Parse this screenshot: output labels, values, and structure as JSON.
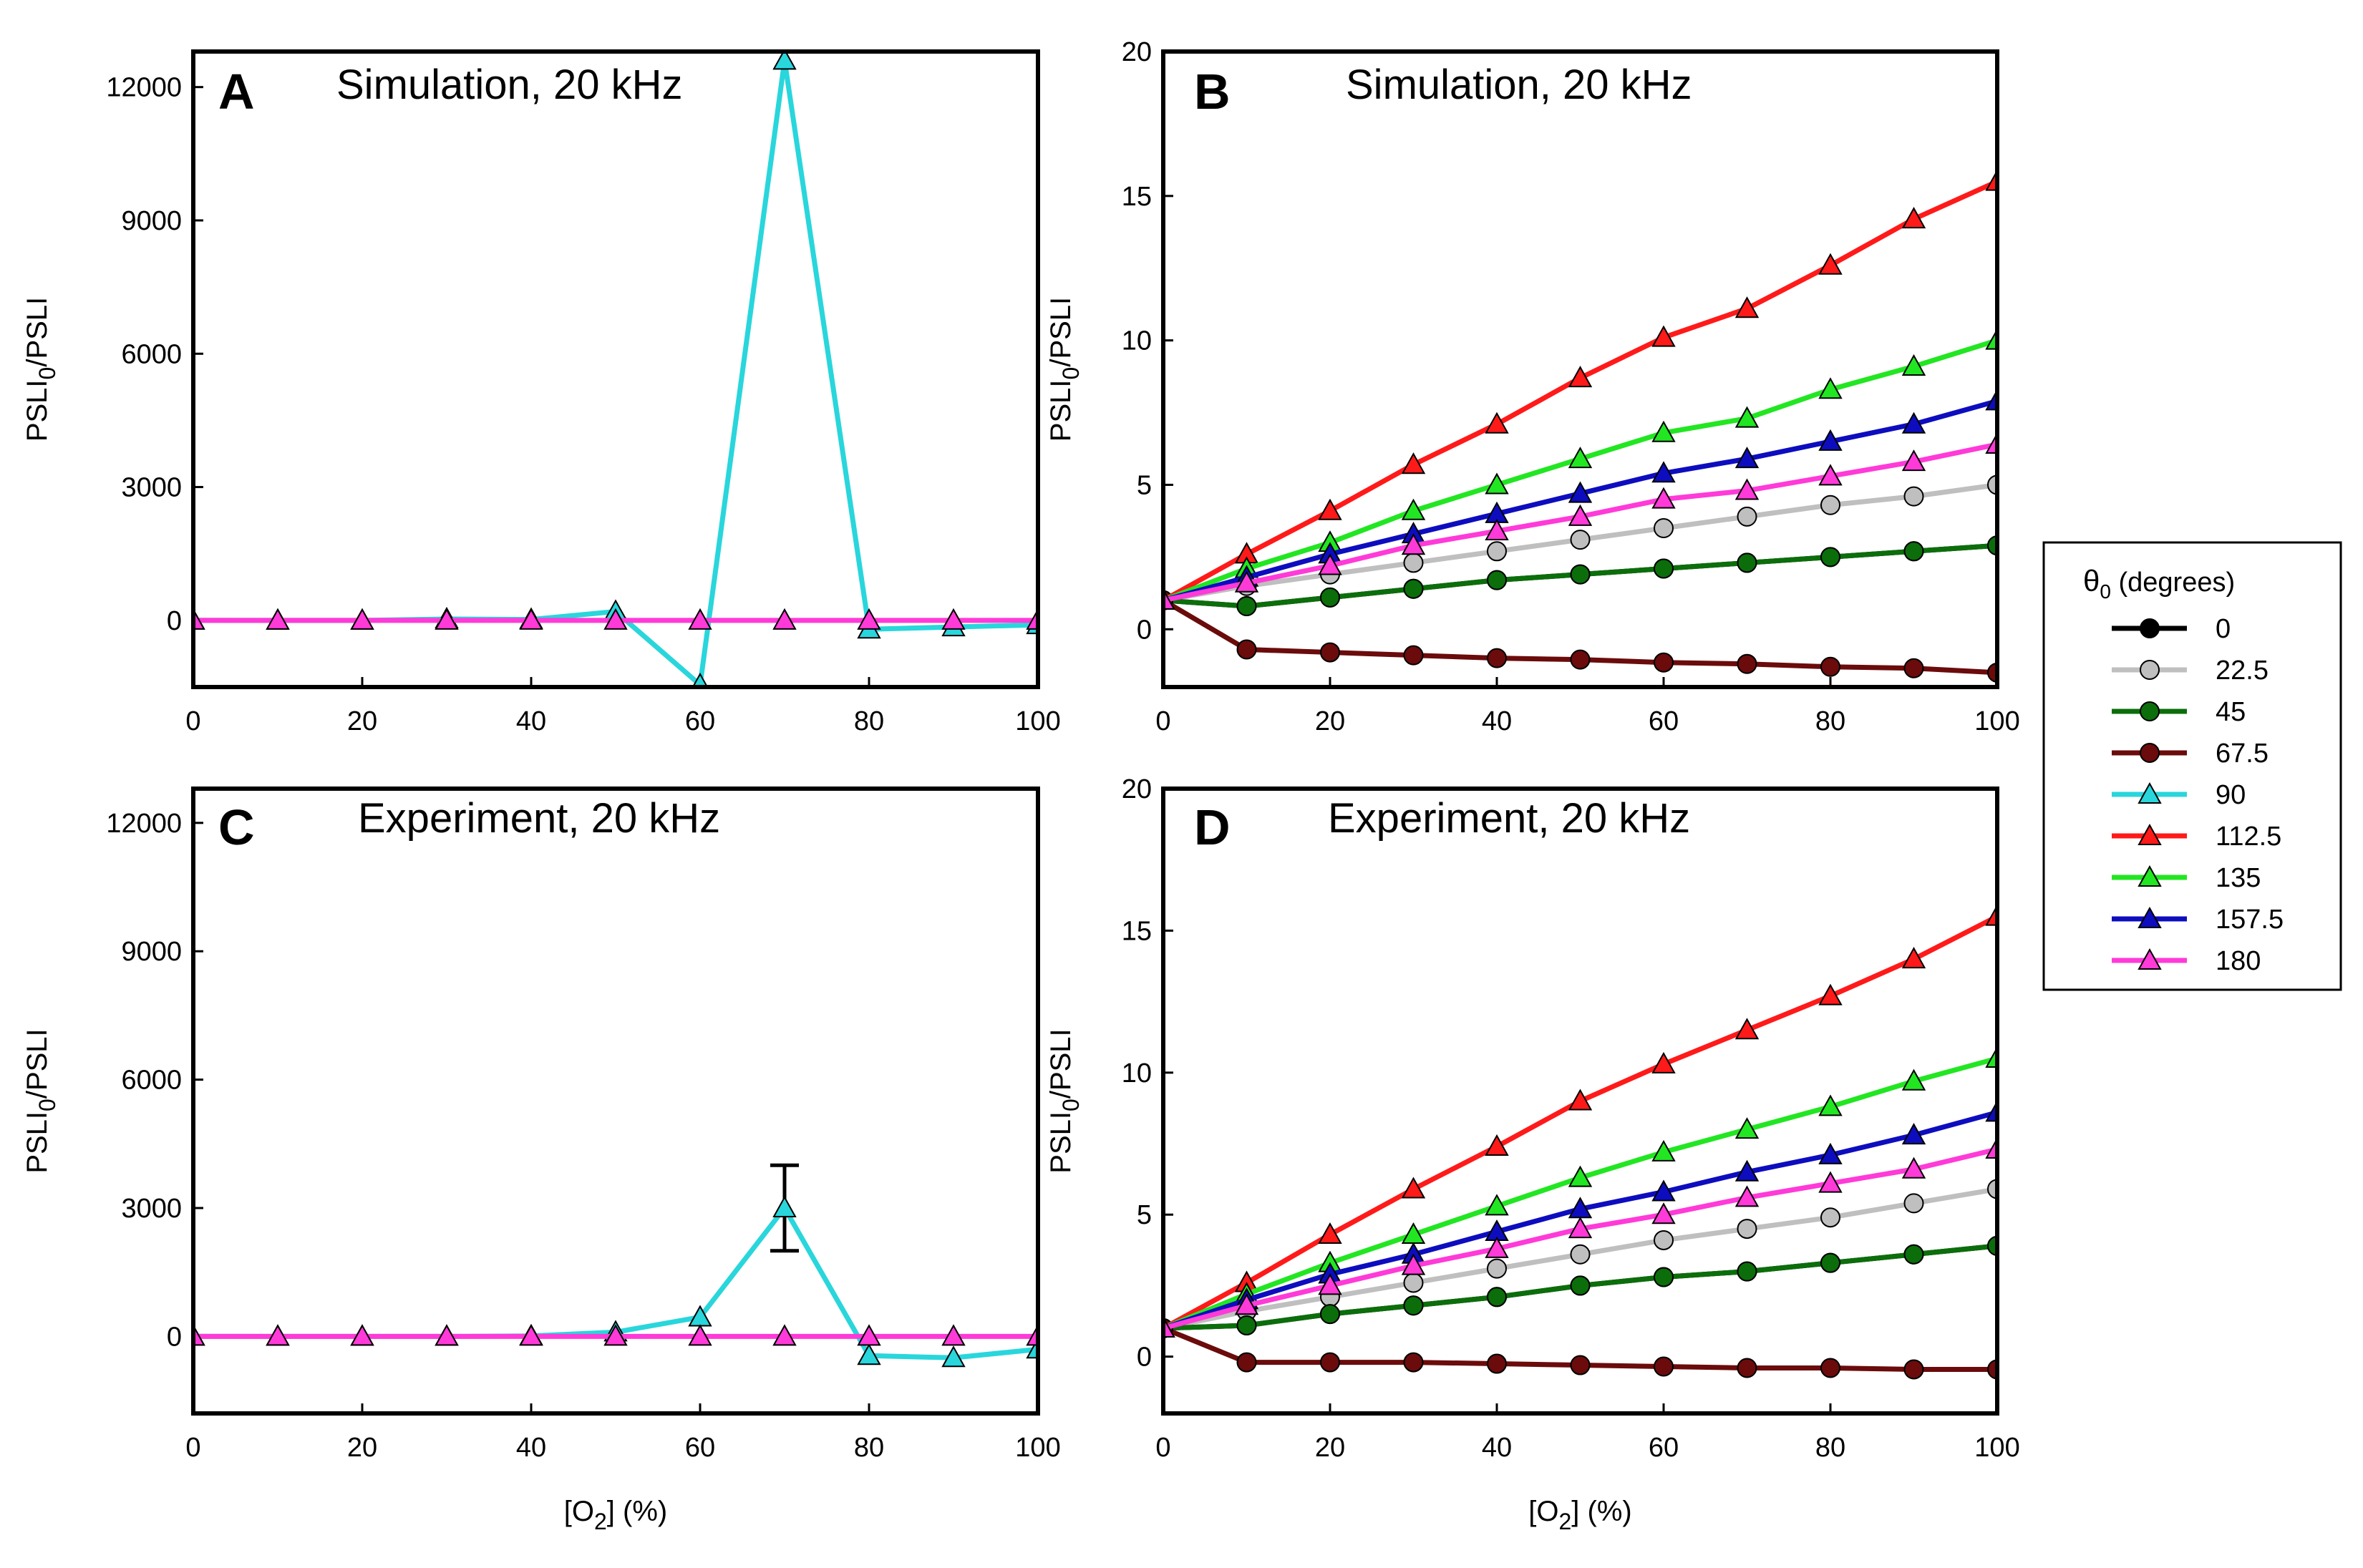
{
  "figure": {
    "x_axis_title": {
      "main": "[O",
      "sub": "2",
      "tail": "] (%)"
    },
    "y_axis_title": {
      "main": "PSLI",
      "sub": "0",
      "tail": "/PSLI"
    },
    "legend": {
      "title_symbol": "θ",
      "title_sub": "0",
      "title_tail": " (degrees)"
    }
  },
  "chart_data": [
    {
      "id": "A",
      "type": "line",
      "letter": "A",
      "title": "Simulation, 20 kHz",
      "xlabel": "[O2] (%)",
      "ylabel": "PSLI0/PSLI",
      "xlim": [
        0,
        100
      ],
      "ylim": [
        -1500,
        12800
      ],
      "xticks": [
        0,
        20,
        40,
        60,
        80,
        100
      ],
      "xtick_labels": [
        "0",
        "20",
        "40",
        "60",
        "80",
        "100"
      ],
      "yticks": [
        0,
        3000,
        6000,
        9000,
        12000
      ],
      "ytick_labels": [
        "0",
        "3000",
        "6000",
        "9000",
        "12000"
      ],
      "x": [
        0,
        10,
        20,
        30,
        40,
        50,
        60,
        70,
        80,
        90,
        100
      ],
      "series": [
        {
          "name": "90",
          "values": [
            1,
            0,
            0,
            30,
            20,
            200,
            -1450,
            12600,
            -200,
            -150,
            -100
          ],
          "errors": []
        },
        {
          "name": "180",
          "values": [
            0,
            0,
            0,
            0,
            0,
            0,
            0,
            0,
            0,
            0,
            0
          ],
          "errors": []
        }
      ]
    },
    {
      "id": "B",
      "type": "line",
      "letter": "B",
      "title": "Simulation, 20 kHz",
      "xlabel": "[O2] (%)",
      "ylabel": "PSLI0/PSLI",
      "xlim": [
        0,
        100
      ],
      "ylim": [
        -2,
        20
      ],
      "xticks": [
        0,
        20,
        40,
        60,
        80,
        100
      ],
      "xtick_labels": [
        "0",
        "20",
        "40",
        "60",
        "80",
        "100"
      ],
      "yticks": [
        0,
        5,
        10,
        15,
        20
      ],
      "ytick_labels": [
        "0",
        "5",
        "10",
        "15",
        "20"
      ],
      "x": [
        0,
        10,
        20,
        30,
        40,
        50,
        60,
        70,
        80,
        90,
        100
      ],
      "series": [
        {
          "name": "0",
          "values": [
            1,
            0.8,
            1.1,
            1.4,
            1.7,
            1.9,
            2.1,
            2.3,
            2.5,
            2.7,
            2.9
          ]
        },
        {
          "name": "22.5",
          "values": [
            1,
            1.5,
            1.9,
            2.3,
            2.7,
            3.1,
            3.5,
            3.9,
            4.3,
            4.6,
            5.0
          ]
        },
        {
          "name": "45",
          "values": [
            1,
            0.8,
            1.1,
            1.4,
            1.7,
            1.9,
            2.1,
            2.3,
            2.5,
            2.7,
            2.9
          ]
        },
        {
          "name": "67.5",
          "values": [
            1,
            -0.7,
            -0.8,
            -0.9,
            -1.0,
            -1.05,
            -1.15,
            -1.2,
            -1.3,
            -1.35,
            -1.5
          ]
        },
        {
          "name": "112.5",
          "values": [
            1,
            2.6,
            4.1,
            5.7,
            7.1,
            8.7,
            10.1,
            11.1,
            12.6,
            14.2,
            15.5
          ]
        },
        {
          "name": "135",
          "values": [
            1,
            2.1,
            3.0,
            4.1,
            5.0,
            5.9,
            6.8,
            7.3,
            8.3,
            9.1,
            10.0
          ]
        },
        {
          "name": "157.5",
          "values": [
            1,
            1.8,
            2.6,
            3.3,
            4.0,
            4.7,
            5.4,
            5.9,
            6.5,
            7.1,
            7.9
          ]
        },
        {
          "name": "180",
          "values": [
            1,
            1.6,
            2.2,
            2.9,
            3.4,
            3.9,
            4.5,
            4.8,
            5.3,
            5.8,
            6.4
          ]
        }
      ]
    },
    {
      "id": "C",
      "type": "line",
      "letter": "C",
      "title": "Experiment, 20 kHz",
      "xlabel": "[O2] (%)",
      "ylabel": "PSLI0/PSLI",
      "xlim": [
        0,
        100
      ],
      "ylim": [
        -1800,
        12800
      ],
      "xticks": [
        0,
        20,
        40,
        60,
        80,
        100
      ],
      "xtick_labels": [
        "0",
        "20",
        "40",
        "60",
        "80",
        "100"
      ],
      "yticks": [
        0,
        3000,
        6000,
        9000,
        12000
      ],
      "ytick_labels": [
        "0",
        "3000",
        "6000",
        "9000",
        "12000"
      ],
      "x": [
        0,
        10,
        20,
        30,
        40,
        50,
        60,
        70,
        80,
        90,
        100
      ],
      "series": [
        {
          "name": "90",
          "values": [
            1,
            0,
            0,
            0,
            10,
            100,
            450,
            3000,
            -450,
            -500,
            -300
          ],
          "errors": [
            0,
            0,
            0,
            0,
            0,
            0,
            0,
            1000,
            0,
            0,
            0
          ]
        },
        {
          "name": "180",
          "values": [
            0,
            0,
            0,
            0,
            0,
            0,
            0,
            0,
            0,
            0,
            0
          ],
          "errors": []
        }
      ]
    },
    {
      "id": "D",
      "type": "line",
      "letter": "D",
      "title": "Experiment, 20 kHz",
      "xlabel": "[O2] (%)",
      "ylabel": "PSLI0/PSLI",
      "xlim": [
        0,
        100
      ],
      "ylim": [
        -2,
        20
      ],
      "xticks": [
        0,
        20,
        40,
        60,
        80,
        100
      ],
      "xtick_labels": [
        "0",
        "20",
        "40",
        "60",
        "80",
        "100"
      ],
      "yticks": [
        0,
        5,
        10,
        15,
        20
      ],
      "ytick_labels": [
        "0",
        "5",
        "10",
        "15",
        "20"
      ],
      "x": [
        0,
        10,
        20,
        30,
        40,
        50,
        60,
        70,
        80,
        90,
        100
      ],
      "series": [
        {
          "name": "0",
          "values": [
            1,
            1.1,
            1.5,
            1.8,
            2.1,
            2.5,
            2.8,
            3.0,
            3.3,
            3.6,
            3.9
          ]
        },
        {
          "name": "22.5",
          "values": [
            1,
            1.6,
            2.1,
            2.6,
            3.1,
            3.6,
            4.1,
            4.5,
            4.9,
            5.4,
            5.9
          ]
        },
        {
          "name": "45",
          "values": [
            1,
            1.1,
            1.5,
            1.8,
            2.1,
            2.5,
            2.8,
            3.0,
            3.3,
            3.6,
            3.9
          ]
        },
        {
          "name": "67.5",
          "values": [
            1,
            -0.2,
            -0.2,
            -0.2,
            -0.25,
            -0.3,
            -0.35,
            -0.4,
            -0.4,
            -0.45,
            -0.45
          ]
        },
        {
          "name": "112.5",
          "values": [
            1,
            2.6,
            4.3,
            5.9,
            7.4,
            9.0,
            10.3,
            11.5,
            12.7,
            14.0,
            15.5
          ]
        },
        {
          "name": "135",
          "values": [
            1,
            2.2,
            3.3,
            4.3,
            5.3,
            6.3,
            7.2,
            8.0,
            8.8,
            9.7,
            10.5
          ]
        },
        {
          "name": "157.5",
          "values": [
            1,
            2.0,
            2.9,
            3.6,
            4.4,
            5.2,
            5.8,
            6.5,
            7.1,
            7.8,
            8.6
          ]
        },
        {
          "name": "180",
          "values": [
            1,
            1.8,
            2.5,
            3.2,
            3.8,
            4.5,
            5.0,
            5.6,
            6.1,
            6.6,
            7.3
          ]
        }
      ]
    }
  ],
  "legend_items": [
    {
      "name": "0",
      "color": "#000000",
      "marker": "circle"
    },
    {
      "name": "22.5",
      "color": "#bfbfbf",
      "marker": "circle"
    },
    {
      "name": "45",
      "color": "#0b6e0b",
      "marker": "circle"
    },
    {
      "name": "67.5",
      "color": "#6b0b0b",
      "marker": "circle"
    },
    {
      "name": "90",
      "color": "#29d6dc",
      "marker": "triangle"
    },
    {
      "name": "112.5",
      "color": "#ff1a1a",
      "marker": "triangle"
    },
    {
      "name": "135",
      "color": "#22e622",
      "marker": "triangle"
    },
    {
      "name": "157.5",
      "color": "#0d0dbf",
      "marker": "triangle"
    },
    {
      "name": "180",
      "color": "#ff3ad8",
      "marker": "triangle"
    }
  ]
}
